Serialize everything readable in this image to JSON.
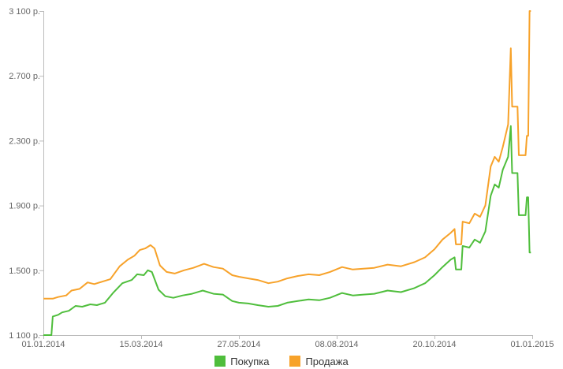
{
  "chart_data": {
    "type": "line",
    "title": "",
    "xlabel": "",
    "ylabel": "",
    "xlim": [
      "2014-01-01",
      "2015-01-01"
    ],
    "ylim": [
      1100,
      3100
    ],
    "grid": false,
    "legend_position": "bottom",
    "y_ticks": [
      1100,
      1500,
      1900,
      2300,
      2700,
      3100
    ],
    "y_tick_labels": [
      "1 100 р.",
      "1.500 р.",
      "1.900 р.",
      "2.300 р.",
      "2.700 р.",
      "3 100 р."
    ],
    "x_ticks": [
      "2014-01-01",
      "2014-03-15",
      "2014-05-27",
      "2014-08-08",
      "2014-10-20",
      "2015-01-01"
    ],
    "x_tick_labels": [
      "01.01.2014",
      "15.03.2014",
      "27.05.2014",
      "08.08.2014",
      "20.10.2014",
      "01.01.2015"
    ],
    "series": [
      {
        "name": "Покупка",
        "color": "#4fbe3c",
        "points": [
          [
            "2014-01-01",
            1100
          ],
          [
            "2014-01-07",
            1100
          ],
          [
            "2014-01-08",
            1215
          ],
          [
            "2014-01-12",
            1225
          ],
          [
            "2014-01-15",
            1240
          ],
          [
            "2014-01-20",
            1250
          ],
          [
            "2014-01-25",
            1280
          ],
          [
            "2014-01-30",
            1275
          ],
          [
            "2014-02-05",
            1290
          ],
          [
            "2014-02-10",
            1285
          ],
          [
            "2014-02-16",
            1300
          ],
          [
            "2014-02-22",
            1360
          ],
          [
            "2014-03-01",
            1420
          ],
          [
            "2014-03-08",
            1440
          ],
          [
            "2014-03-12",
            1475
          ],
          [
            "2014-03-17",
            1470
          ],
          [
            "2014-03-20",
            1500
          ],
          [
            "2014-03-23",
            1490
          ],
          [
            "2014-03-28",
            1380
          ],
          [
            "2014-04-02",
            1340
          ],
          [
            "2014-04-08",
            1330
          ],
          [
            "2014-04-15",
            1345
          ],
          [
            "2014-04-22",
            1355
          ],
          [
            "2014-04-30",
            1375
          ],
          [
            "2014-05-08",
            1355
          ],
          [
            "2014-05-15",
            1350
          ],
          [
            "2014-05-22",
            1310
          ],
          [
            "2014-05-27",
            1300
          ],
          [
            "2014-06-03",
            1295
          ],
          [
            "2014-06-10",
            1285
          ],
          [
            "2014-06-18",
            1275
          ],
          [
            "2014-06-25",
            1280
          ],
          [
            "2014-07-02",
            1300
          ],
          [
            "2014-07-10",
            1310
          ],
          [
            "2014-07-18",
            1320
          ],
          [
            "2014-07-26",
            1315
          ],
          [
            "2014-08-03",
            1330
          ],
          [
            "2014-08-12",
            1360
          ],
          [
            "2014-08-20",
            1345
          ],
          [
            "2014-08-28",
            1350
          ],
          [
            "2014-09-05",
            1355
          ],
          [
            "2014-09-15",
            1375
          ],
          [
            "2014-09-25",
            1365
          ],
          [
            "2014-10-05",
            1390
          ],
          [
            "2014-10-13",
            1420
          ],
          [
            "2014-10-20",
            1470
          ],
          [
            "2014-10-26",
            1520
          ],
          [
            "2014-11-01",
            1565
          ],
          [
            "2014-11-04",
            1580
          ],
          [
            "2014-11-05",
            1505
          ],
          [
            "2014-11-09",
            1505
          ],
          [
            "2014-11-10",
            1650
          ],
          [
            "2014-11-15",
            1640
          ],
          [
            "2014-11-19",
            1690
          ],
          [
            "2014-11-23",
            1670
          ],
          [
            "2014-11-27",
            1740
          ],
          [
            "2014-12-01",
            1960
          ],
          [
            "2014-12-04",
            2030
          ],
          [
            "2014-12-07",
            2010
          ],
          [
            "2014-12-10",
            2120
          ],
          [
            "2014-12-14",
            2200
          ],
          [
            "2014-12-16",
            2390
          ],
          [
            "2014-12-17",
            2100
          ],
          [
            "2014-12-21",
            2100
          ],
          [
            "2014-12-22",
            1840
          ],
          [
            "2014-12-27",
            1840
          ],
          [
            "2014-12-28",
            1950
          ],
          [
            "2014-12-29",
            1950
          ],
          [
            "2014-12-30",
            1610
          ],
          [
            "2014-12-31",
            1610
          ]
        ]
      },
      {
        "name": "Продажа",
        "color": "#f7a22a",
        "points": [
          [
            "2014-01-01",
            1325
          ],
          [
            "2014-01-08",
            1325
          ],
          [
            "2014-01-12",
            1335
          ],
          [
            "2014-01-18",
            1345
          ],
          [
            "2014-01-22",
            1375
          ],
          [
            "2014-01-28",
            1385
          ],
          [
            "2014-02-03",
            1425
          ],
          [
            "2014-02-08",
            1415
          ],
          [
            "2014-02-14",
            1430
          ],
          [
            "2014-02-20",
            1445
          ],
          [
            "2014-02-27",
            1525
          ],
          [
            "2014-03-05",
            1565
          ],
          [
            "2014-03-10",
            1590
          ],
          [
            "2014-03-14",
            1625
          ],
          [
            "2014-03-18",
            1635
          ],
          [
            "2014-03-22",
            1655
          ],
          [
            "2014-03-25",
            1635
          ],
          [
            "2014-03-29",
            1530
          ],
          [
            "2014-04-03",
            1490
          ],
          [
            "2014-04-09",
            1480
          ],
          [
            "2014-04-16",
            1500
          ],
          [
            "2014-04-23",
            1515
          ],
          [
            "2014-05-01",
            1540
          ],
          [
            "2014-05-08",
            1520
          ],
          [
            "2014-05-15",
            1510
          ],
          [
            "2014-05-22",
            1470
          ],
          [
            "2014-05-27",
            1460
          ],
          [
            "2014-06-03",
            1450
          ],
          [
            "2014-06-10",
            1440
          ],
          [
            "2014-06-18",
            1420
          ],
          [
            "2014-06-25",
            1430
          ],
          [
            "2014-07-02",
            1450
          ],
          [
            "2014-07-10",
            1465
          ],
          [
            "2014-07-18",
            1475
          ],
          [
            "2014-07-26",
            1470
          ],
          [
            "2014-08-03",
            1490
          ],
          [
            "2014-08-12",
            1520
          ],
          [
            "2014-08-20",
            1505
          ],
          [
            "2014-08-28",
            1510
          ],
          [
            "2014-09-05",
            1515
          ],
          [
            "2014-09-15",
            1535
          ],
          [
            "2014-09-25",
            1525
          ],
          [
            "2014-10-05",
            1550
          ],
          [
            "2014-10-13",
            1580
          ],
          [
            "2014-10-20",
            1630
          ],
          [
            "2014-10-26",
            1690
          ],
          [
            "2014-11-01",
            1730
          ],
          [
            "2014-11-04",
            1755
          ],
          [
            "2014-11-05",
            1660
          ],
          [
            "2014-11-09",
            1660
          ],
          [
            "2014-11-10",
            1800
          ],
          [
            "2014-11-15",
            1790
          ],
          [
            "2014-11-19",
            1850
          ],
          [
            "2014-11-23",
            1830
          ],
          [
            "2014-11-27",
            1900
          ],
          [
            "2014-12-01",
            2140
          ],
          [
            "2014-12-04",
            2200
          ],
          [
            "2014-12-07",
            2170
          ],
          [
            "2014-12-10",
            2260
          ],
          [
            "2014-12-14",
            2400
          ],
          [
            "2014-12-16",
            2870
          ],
          [
            "2014-12-17",
            2510
          ],
          [
            "2014-12-21",
            2510
          ],
          [
            "2014-12-22",
            2210
          ],
          [
            "2014-12-27",
            2210
          ],
          [
            "2014-12-28",
            2330
          ],
          [
            "2014-12-29",
            2330
          ],
          [
            "2014-12-30",
            3100
          ],
          [
            "2014-12-31",
            3100
          ]
        ]
      }
    ]
  }
}
